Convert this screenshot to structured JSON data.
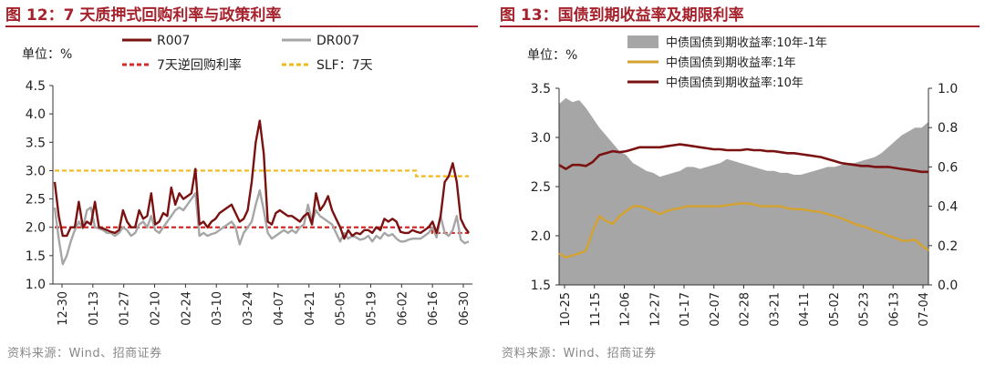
{
  "chart_data": [
    {
      "type": "line",
      "title": "图 12：7 天质押式回购利率与政策利率",
      "unit_label": "单位：%",
      "ylim": [
        1.0,
        4.5
      ],
      "yticks": [
        "1.0",
        "1.5",
        "2.0",
        "2.5",
        "3.0",
        "3.5",
        "4.0",
        "4.5"
      ],
      "xticks": [
        "12-30",
        "01-13",
        "01-27",
        "02-10",
        "02-24",
        "03-10",
        "03-24",
        "04-07",
        "04-21",
        "05-05",
        "05-19",
        "06-02",
        "06-16",
        "06-30"
      ],
      "source": "资料来源：Wind、招商证券",
      "series": [
        {
          "name": "R007",
          "color": "#7a1212",
          "style": "solid",
          "width": 2.4,
          "values": [
            2.8,
            2.2,
            1.85,
            1.85,
            2.0,
            2.0,
            2.45,
            2.0,
            2.1,
            2.05,
            2.45,
            2.0,
            1.98,
            1.95,
            1.92,
            1.9,
            1.95,
            2.3,
            2.1,
            2.0,
            2.0,
            2.3,
            2.15,
            2.2,
            2.6,
            2.05,
            2.1,
            2.25,
            2.2,
            2.7,
            2.4,
            2.6,
            2.5,
            2.55,
            2.6,
            3.03,
            2.05,
            2.1,
            2.0,
            2.1,
            2.15,
            2.25,
            2.3,
            2.35,
            2.4,
            2.25,
            2.1,
            2.15,
            2.3,
            2.8,
            3.5,
            3.88,
            3.3,
            2.1,
            2.05,
            2.25,
            2.3,
            2.25,
            2.2,
            2.2,
            2.15,
            2.1,
            2.2,
            2.25,
            2.05,
            2.6,
            2.3,
            2.4,
            2.55,
            2.3,
            2.15,
            2.0,
            1.8,
            1.95,
            1.85,
            1.9,
            1.88,
            1.95,
            1.95,
            1.9,
            2.0,
            1.95,
            2.15,
            2.1,
            2.15,
            2.1,
            1.92,
            1.9,
            1.9,
            1.95,
            1.92,
            1.9,
            1.95,
            2.0,
            2.1,
            1.9,
            2.2,
            2.8,
            2.9,
            3.13,
            2.8,
            2.15,
            2.0,
            1.9
          ]
        },
        {
          "name": "DR007",
          "color": "#a6a6a6",
          "style": "solid",
          "width": 2.4,
          "values": [
            2.35,
            1.8,
            1.35,
            1.5,
            1.75,
            1.95,
            2.1,
            1.98,
            2.3,
            2.35,
            2.0,
            1.98,
            1.95,
            1.9,
            1.9,
            1.85,
            1.9,
            2.0,
            1.95,
            1.85,
            1.9,
            2.05,
            2.1,
            2.0,
            2.2,
            1.95,
            1.9,
            2.0,
            2.1,
            2.2,
            2.3,
            2.35,
            2.3,
            2.4,
            2.5,
            2.6,
            1.85,
            1.9,
            1.85,
            1.88,
            1.9,
            1.95,
            2.0,
            2.05,
            2.1,
            2.0,
            1.7,
            1.9,
            2.0,
            2.1,
            2.4,
            2.65,
            2.3,
            1.9,
            1.8,
            1.85,
            1.9,
            1.95,
            1.9,
            1.95,
            1.9,
            2.0,
            2.05,
            2.4,
            2.1,
            2.3,
            2.2,
            2.15,
            2.1,
            2.05,
            1.9,
            1.75,
            1.9,
            1.8,
            1.85,
            1.82,
            1.78,
            1.8,
            1.85,
            1.75,
            1.85,
            1.8,
            1.9,
            1.85,
            1.88,
            1.8,
            1.75,
            1.75,
            1.78,
            1.8,
            1.8,
            1.8,
            1.85,
            1.9,
            2.0,
            1.82,
            2.2,
            1.9,
            1.85,
            1.95,
            2.2,
            1.78,
            1.72,
            1.75
          ]
        },
        {
          "name": "7天逆回购利率",
          "color": "#d42a2a",
          "style": "dashed",
          "width": 2.2,
          "values": [
            2.0,
            2.0,
            1.9,
            1.9
          ]
        },
        {
          "name": "SLF：7天",
          "color": "#f0b91e",
          "style": "dashed",
          "width": 2.2,
          "values": [
            3.0,
            3.0,
            2.9,
            2.9
          ]
        }
      ]
    },
    {
      "type": "line",
      "title": "图 13：国债到期收益率及期限利率",
      "unit_label": "单位：%",
      "ylim": [
        1.5,
        3.5
      ],
      "yticks": [
        "1.5",
        "2.0",
        "2.5",
        "3.0",
        "3.5"
      ],
      "y2lim": [
        0.0,
        1.0
      ],
      "y2ticks": [
        "0.0",
        "0.2",
        "0.4",
        "0.6",
        "0.8",
        "1.0"
      ],
      "xticks": [
        "10-25",
        "11-15",
        "12-06",
        "12-27",
        "01-17",
        "02-07",
        "02-28",
        "03-21",
        "04-11",
        "05-02",
        "05-23",
        "06-13",
        "07-04"
      ],
      "source": "资料来源：Wind、招商证券",
      "series": [
        {
          "name": "中债国债到期收益率:10年-1年",
          "color": "#a6a6a6",
          "type": "area",
          "axis": "right",
          "values": [
            0.92,
            0.95,
            0.93,
            0.94,
            0.9,
            0.85,
            0.8,
            0.76,
            0.72,
            0.68,
            0.66,
            0.62,
            0.6,
            0.58,
            0.57,
            0.55,
            0.56,
            0.57,
            0.58,
            0.6,
            0.6,
            0.59,
            0.6,
            0.61,
            0.62,
            0.64,
            0.63,
            0.62,
            0.61,
            0.6,
            0.59,
            0.58,
            0.58,
            0.57,
            0.57,
            0.56,
            0.56,
            0.57,
            0.58,
            0.59,
            0.6,
            0.6,
            0.61,
            0.62,
            0.62,
            0.63,
            0.64,
            0.65,
            0.67,
            0.7,
            0.73,
            0.76,
            0.78,
            0.8,
            0.8,
            0.83
          ]
        },
        {
          "name": "中债国债到期收益率:1年",
          "color": "#d4a22e",
          "type": "line",
          "axis": "left",
          "values": [
            1.82,
            1.78,
            1.8,
            1.82,
            1.85,
            2.05,
            2.2,
            2.15,
            2.12,
            2.2,
            2.25,
            2.3,
            2.3,
            2.28,
            2.25,
            2.22,
            2.25,
            2.27,
            2.28,
            2.3,
            2.3,
            2.3,
            2.3,
            2.3,
            2.3,
            2.31,
            2.32,
            2.33,
            2.33,
            2.32,
            2.3,
            2.3,
            2.3,
            2.3,
            2.28,
            2.27,
            2.27,
            2.26,
            2.25,
            2.24,
            2.22,
            2.2,
            2.18,
            2.15,
            2.12,
            2.1,
            2.08,
            2.05,
            2.03,
            2.0,
            1.98,
            1.95,
            1.95,
            1.96,
            1.9,
            1.85
          ]
        },
        {
          "name": "中债国债到期收益率:10年",
          "color": "#7a1212",
          "type": "line",
          "axis": "left",
          "values": [
            2.72,
            2.68,
            2.72,
            2.72,
            2.71,
            2.75,
            2.82,
            2.84,
            2.86,
            2.85,
            2.86,
            2.88,
            2.9,
            2.9,
            2.9,
            2.9,
            2.91,
            2.92,
            2.93,
            2.92,
            2.91,
            2.9,
            2.89,
            2.88,
            2.88,
            2.87,
            2.87,
            2.87,
            2.88,
            2.87,
            2.87,
            2.86,
            2.86,
            2.85,
            2.84,
            2.84,
            2.83,
            2.82,
            2.81,
            2.8,
            2.78,
            2.76,
            2.74,
            2.73,
            2.72,
            2.71,
            2.71,
            2.7,
            2.7,
            2.7,
            2.69,
            2.68,
            2.67,
            2.66,
            2.65,
            2.65
          ]
        }
      ]
    }
  ]
}
